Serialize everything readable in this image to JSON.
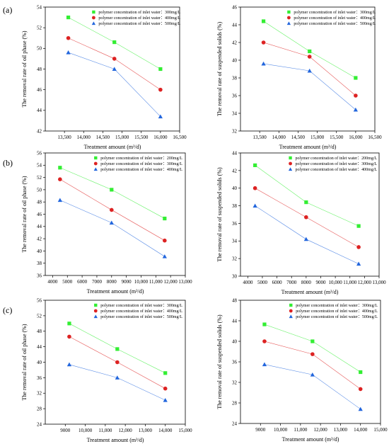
{
  "figure": {
    "rows": [
      {
        "label": "(a)"
      },
      {
        "label": "(b)"
      },
      {
        "label": "(c)"
      }
    ]
  },
  "colors": {
    "green": "#33ee33",
    "red": "#dd2222",
    "blue": "#2266dd",
    "axis": "#000000"
  },
  "chart_data": [
    {
      "type": "line",
      "xlabel": "Treatment amount (m³/d)",
      "ylabel": "The removal rate of oil phase (%)",
      "xlim": [
        13000,
        16500
      ],
      "ylim": [
        42,
        54
      ],
      "xticks": [
        13500,
        14000,
        14500,
        15000,
        15500,
        16000,
        16500
      ],
      "xtick_labels": [
        "13,500",
        "14,000",
        "14,500",
        "15,000",
        "15,500",
        "16,000",
        "16,500"
      ],
      "yticks": [
        42,
        44,
        46,
        48,
        50,
        52,
        54
      ],
      "ytick_labels": [
        "42",
        "44",
        "46",
        "48",
        "50",
        "52",
        "54"
      ],
      "legend": "top-right",
      "x": [
        13600,
        14800,
        16000
      ],
      "series": [
        {
          "name": "polymer concentration of inlet water：300mg/L",
          "marker": "square",
          "color": "#33ee33",
          "values": [
            53.0,
            50.6,
            48.0
          ]
        },
        {
          "name": "polymer concentration of inlet water：400mg/L",
          "marker": "circle",
          "color": "#dd2222",
          "values": [
            51.0,
            49.0,
            46.0
          ]
        },
        {
          "name": "polymer concentration of inlet water：500mg/L",
          "marker": "triangle",
          "color": "#2266dd",
          "values": [
            49.6,
            48.0,
            43.4
          ]
        }
      ]
    },
    {
      "type": "line",
      "xlabel": "Treatment amount (m³/d)",
      "ylabel": "The removal rate of suspended solids (%)",
      "xlim": [
        13000,
        16500
      ],
      "ylim": [
        32,
        46
      ],
      "xticks": [
        13500,
        14000,
        14500,
        15000,
        15500,
        16000,
        16500
      ],
      "xtick_labels": [
        "13,500",
        "14,000",
        "14,500",
        "15,000",
        "15,500",
        "16,000",
        "16,500"
      ],
      "yticks": [
        32,
        34,
        36,
        38,
        40,
        42,
        44,
        46
      ],
      "ytick_labels": [
        "32",
        "34",
        "36",
        "38",
        "40",
        "42",
        "44",
        "46"
      ],
      "legend": "top-right",
      "x": [
        13600,
        14800,
        16000
      ],
      "series": [
        {
          "name": "polymer concentration of inlet water：300mg/L",
          "marker": "square",
          "color": "#33ee33",
          "values": [
            44.4,
            41.0,
            38.0
          ]
        },
        {
          "name": "polymer concentration of inlet water：400mg/L",
          "marker": "circle",
          "color": "#dd2222",
          "values": [
            42.0,
            40.4,
            36.0
          ]
        },
        {
          "name": "polymer concentration of inlet water：500mg/L",
          "marker": "triangle",
          "color": "#2266dd",
          "values": [
            39.6,
            38.8,
            34.4
          ]
        }
      ]
    },
    {
      "type": "line",
      "xlabel": "Treatment amount (m³/d)",
      "ylabel": "The removal rate of oil phase (%)",
      "xlim": [
        3500,
        13000
      ],
      "ylim": [
        36,
        56
      ],
      "xticks": [
        4000,
        5000,
        6000,
        7000,
        8000,
        9000,
        10000,
        11000,
        12000,
        13000
      ],
      "xtick_labels": [
        "4000",
        "5000",
        "6000",
        "7000",
        "8000",
        "9000",
        "10,000",
        "11,000",
        "12,000",
        "13,000"
      ],
      "yticks": [
        36,
        38,
        40,
        42,
        44,
        46,
        48,
        50,
        52,
        54,
        56
      ],
      "ytick_labels": [
        "36",
        "38",
        "40",
        "42",
        "44",
        "46",
        "48",
        "50",
        "52",
        "54",
        "56"
      ],
      "legend": "top-right",
      "x": [
        4500,
        8000,
        11600
      ],
      "series": [
        {
          "name": "polymer concentration of inlet water：200mg/L",
          "marker": "square",
          "color": "#33ee33",
          "values": [
            53.6,
            50.0,
            45.3
          ]
        },
        {
          "name": "polymer concentration of inlet water：300mg/L",
          "marker": "circle",
          "color": "#dd2222",
          "values": [
            51.7,
            46.7,
            41.7
          ]
        },
        {
          "name": "polymer concentration of inlet water：400mg/L",
          "marker": "triangle",
          "color": "#2266dd",
          "values": [
            48.3,
            44.6,
            39.1
          ]
        }
      ]
    },
    {
      "type": "line",
      "xlabel": "Treatment amount (m³/d)",
      "ylabel": "The removal rate of suspended solids (%)",
      "xlim": [
        3500,
        13000
      ],
      "ylim": [
        30,
        44
      ],
      "xticks": [
        4000,
        5000,
        6000,
        7000,
        8000,
        9000,
        10000,
        11000,
        12000,
        13000
      ],
      "xtick_labels": [
        "4000",
        "5000",
        "6000",
        "7000",
        "8000",
        "9000",
        "10,000",
        "11,000",
        "12,000",
        "13,000"
      ],
      "yticks": [
        30,
        32,
        34,
        36,
        38,
        40,
        42,
        44
      ],
      "ytick_labels": [
        "30",
        "32",
        "34",
        "36",
        "38",
        "40",
        "42",
        "44"
      ],
      "legend": "top-right",
      "x": [
        4500,
        8000,
        11600
      ],
      "series": [
        {
          "name": "polymer concentration of inlet water：200mg/L",
          "marker": "square",
          "color": "#33ee33",
          "values": [
            42.6,
            38.4,
            35.7
          ]
        },
        {
          "name": "polymer concentration of inlet water：300mg/L",
          "marker": "circle",
          "color": "#dd2222",
          "values": [
            40.0,
            36.7,
            33.3
          ]
        },
        {
          "name": "polymer concentration of inlet water：400mg/L",
          "marker": "triangle",
          "color": "#2266dd",
          "values": [
            38.0,
            34.2,
            31.4
          ]
        }
      ]
    },
    {
      "type": "line",
      "xlabel": "Treatment amount (m³/d)",
      "ylabel": "The removal rate of oil phase (%)",
      "xlim": [
        8000,
        15000
      ],
      "ylim": [
        24,
        56
      ],
      "xticks": [
        9000,
        10000,
        11000,
        12000,
        13000,
        14000,
        15000
      ],
      "xtick_labels": [
        "9000",
        "10,000",
        "11,000",
        "12,000",
        "13,000",
        "14,000",
        "15,000"
      ],
      "yticks": [
        24,
        28,
        32,
        36,
        40,
        44,
        48,
        52,
        56
      ],
      "ytick_labels": [
        "24",
        "28",
        "32",
        "36",
        "40",
        "44",
        "48",
        "52",
        "56"
      ],
      "legend": "top-right",
      "x": [
        9200,
        11600,
        14000
      ],
      "series": [
        {
          "name": "polymer concentration of inlet water：300mg/L",
          "marker": "square",
          "color": "#33ee33",
          "values": [
            50.0,
            43.4,
            37.2
          ]
        },
        {
          "name": "polymer concentration of inlet water：400mg/L",
          "marker": "circle",
          "color": "#dd2222",
          "values": [
            46.6,
            40.0,
            33.2
          ]
        },
        {
          "name": "polymer concentration of inlet water：500mg/L",
          "marker": "triangle",
          "color": "#2266dd",
          "values": [
            39.4,
            36.0,
            30.2
          ]
        }
      ]
    },
    {
      "type": "line",
      "xlabel": "Treatment amount (m³/d)",
      "ylabel": "The removal rate of suspended solids (%)",
      "xlim": [
        8000,
        15000
      ],
      "ylim": [
        24,
        48
      ],
      "xticks": [
        9000,
        10000,
        11000,
        12000,
        13000,
        14000,
        15000
      ],
      "xtick_labels": [
        "9000",
        "10,000",
        "11,000",
        "12,000",
        "13,000",
        "14,000",
        "15,000"
      ],
      "yticks": [
        24,
        28,
        32,
        36,
        40,
        44,
        48
      ],
      "ytick_labels": [
        "24",
        "28",
        "32",
        "36",
        "40",
        "44",
        "48"
      ],
      "legend": "top-right",
      "x": [
        9200,
        11600,
        14000
      ],
      "series": [
        {
          "name": "polymer concentration of inlet water：300mg/L",
          "marker": "square",
          "color": "#33ee33",
          "values": [
            43.3,
            40.0,
            34.0
          ]
        },
        {
          "name": "polymer concentration of inlet water：400mg/L",
          "marker": "circle",
          "color": "#dd2222",
          "values": [
            40.0,
            37.5,
            30.7
          ]
        },
        {
          "name": "polymer concentration of inlet water：500mg/L",
          "marker": "triangle",
          "color": "#2266dd",
          "values": [
            35.5,
            33.5,
            26.8
          ]
        }
      ]
    }
  ]
}
